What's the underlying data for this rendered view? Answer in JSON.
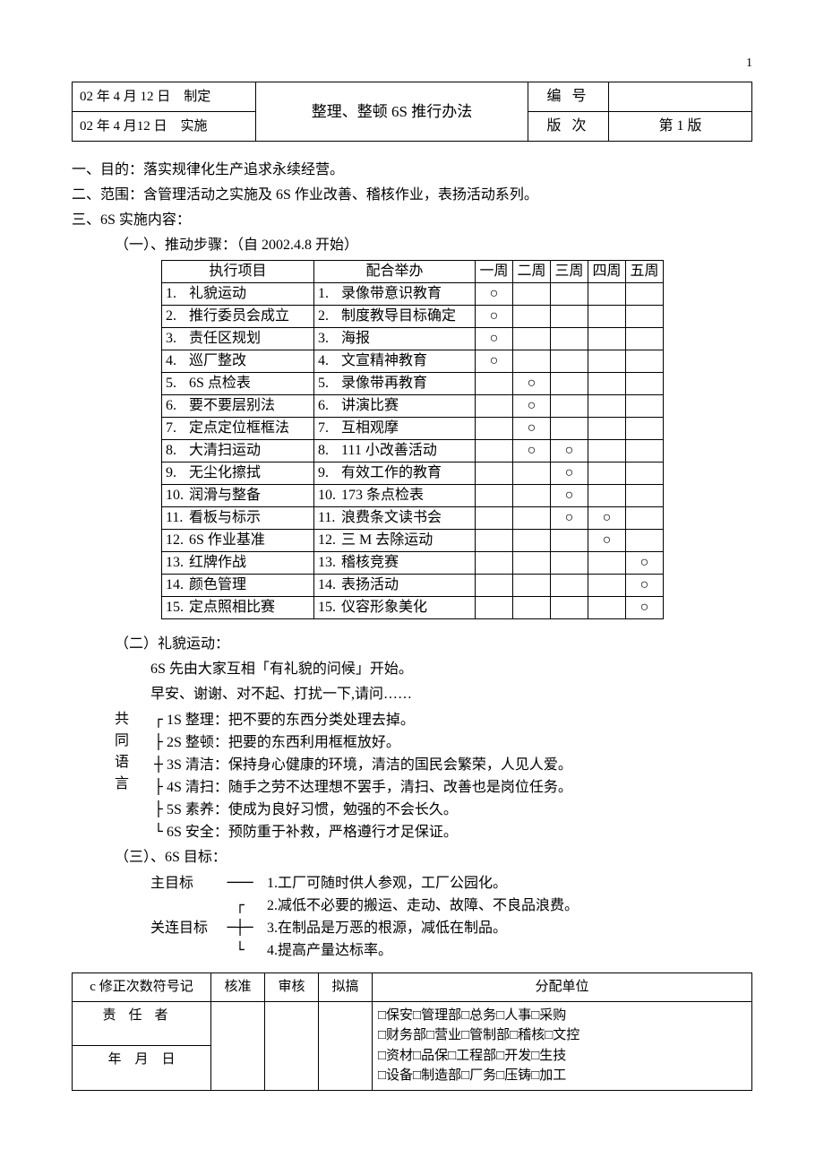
{
  "page_number": "1",
  "header": {
    "left_top": "02 年 4 月 12 日　制定",
    "left_bot": "02 年 4 月12 日　实施",
    "title": "整理、整顿 6S 推行办法",
    "num_label": "编号",
    "num_value": "",
    "ver_label": "版次",
    "ver_value": "第 1 版"
  },
  "sec1": "一、目的：落实规律化生产追求永续经营。",
  "sec2": "二、范围：含管理活动之实施及 6S 作业改善、稽核作业，表扬活动系列。",
  "sec3": "三、6S 实施内容：",
  "sec3_1": "（一）、推动步骤：（自 2002.4.8 开始）",
  "steps": {
    "cols": [
      "执行项目",
      "配合举办",
      "一周",
      "二周",
      "三周",
      "四周",
      "五周"
    ],
    "mark": "○",
    "rows": [
      {
        "n": "1.",
        "exec": "礼貌运动",
        "cn": "1.",
        "coop": "录像带意识教育",
        "w": [
          1,
          0,
          0,
          0,
          0
        ]
      },
      {
        "n": "2.",
        "exec": "推行委员会成立",
        "cn": "2.",
        "coop": "制度教导目标确定",
        "w": [
          1,
          0,
          0,
          0,
          0
        ]
      },
      {
        "n": "3.",
        "exec": "责任区规划",
        "cn": "3.",
        "coop": "海报",
        "w": [
          1,
          0,
          0,
          0,
          0
        ]
      },
      {
        "n": "4.",
        "exec": "巡厂整改",
        "cn": "4.",
        "coop": "文宣精神教育",
        "w": [
          1,
          0,
          0,
          0,
          0
        ]
      },
      {
        "n": "5.",
        "exec": "6S 点检表",
        "cn": "5.",
        "coop": "录像带再教育",
        "w": [
          0,
          1,
          0,
          0,
          0
        ]
      },
      {
        "n": "6.",
        "exec": "要不要层别法",
        "cn": "6.",
        "coop": "讲演比赛",
        "w": [
          0,
          1,
          0,
          0,
          0
        ]
      },
      {
        "n": "7.",
        "exec": "定点定位框框法",
        "cn": "7.",
        "coop": "互相观摩",
        "w": [
          0,
          1,
          0,
          0,
          0
        ]
      },
      {
        "n": "8.",
        "exec": "大清扫运动",
        "cn": "8.",
        "coop": "111 小改善活动",
        "w": [
          0,
          1,
          1,
          0,
          0
        ]
      },
      {
        "n": "9.",
        "exec": "无尘化擦拭",
        "cn": "9.",
        "coop": "有效工作的教育",
        "w": [
          0,
          0,
          1,
          0,
          0
        ]
      },
      {
        "n": "10.",
        "exec": "润滑与整备",
        "cn": "10.",
        "coop": "173 条点检表",
        "w": [
          0,
          0,
          1,
          0,
          0
        ]
      },
      {
        "n": "11.",
        "exec": "看板与标示",
        "cn": "11.",
        "coop": "浪费条文读书会",
        "w": [
          0,
          0,
          1,
          1,
          0
        ]
      },
      {
        "n": "12.",
        "exec": "6S 作业基准",
        "cn": "12.",
        "coop": "三 M 去除运动",
        "w": [
          0,
          0,
          0,
          1,
          0
        ]
      },
      {
        "n": "13.",
        "exec": "红牌作战",
        "cn": "13.",
        "coop": "稽核竞赛",
        "w": [
          0,
          0,
          0,
          0,
          1
        ]
      },
      {
        "n": "14.",
        "exec": "颜色管理",
        "cn": "14.",
        "coop": "表扬活动",
        "w": [
          0,
          0,
          0,
          0,
          1
        ]
      },
      {
        "n": "15.",
        "exec": "定点照相比赛",
        "cn": "15.",
        "coop": "仪容形象美化",
        "w": [
          0,
          0,
          0,
          0,
          1
        ]
      }
    ]
  },
  "sec3_2_title": "（二）礼貌运动：",
  "sec3_2_line1": "6S 先由大家互相「有礼貌的问候」开始。",
  "sec3_2_line2": "早安、谢谢、对不起、打扰一下,请问……",
  "bracket_label_chars": [
    "共",
    "同",
    "语",
    "言"
  ],
  "bracket_lines": [
    {
      "g": "┌",
      "t": "1S 整理：把不要的东西分类处理去掉。"
    },
    {
      "g": "├",
      "t": "2S 整顿：把要的东西利用框框放好。"
    },
    {
      "g": "┼",
      "t": "3S 清洁：保持身心健康的环境，清洁的国民会繁荣，人见人爱。"
    },
    {
      "g": "├",
      "t": "4S 清扫：随手之劳不达理想不罢手，清扫、改善也是岗位任务。"
    },
    {
      "g": "├",
      "t": "5S 素养：使成为良好习惯，勉强的不会长久。"
    },
    {
      "g": "└",
      "t": "6S 安全：预防重于补救，严格遵行才足保证。"
    }
  ],
  "sec3_3_title": "（三）、6S 目标：",
  "goals": [
    {
      "lbl": "主目标",
      "conn": "───",
      "txt": "1.工厂可随时供人参观，工厂公园化。"
    },
    {
      "lbl": "",
      "conn": "┌",
      "txt": "2.减低不必要的搬运、走动、故障、不良品浪费。"
    },
    {
      "lbl": "关连目标",
      "conn": "─┼─",
      "txt": "3.在制品是万恶的根源，减低在制品。"
    },
    {
      "lbl": "",
      "conn": "└",
      "txt": "4.提高产量达标率。"
    }
  ],
  "footer": {
    "h1": "c 修正次数符号记",
    "h2": "核准",
    "h3": "审核",
    "h4": "拟搞",
    "h5": "分配单位",
    "r2c1": "责任者",
    "r3c1": "年　月　日",
    "units": [
      "□保安□管理部□总务□人事□采购",
      "□财务部□营业□管制部□稽核□文控",
      "□资材□品保□工程部□开发□生技",
      "□设备□制造部□厂务□压铸□加工"
    ]
  }
}
